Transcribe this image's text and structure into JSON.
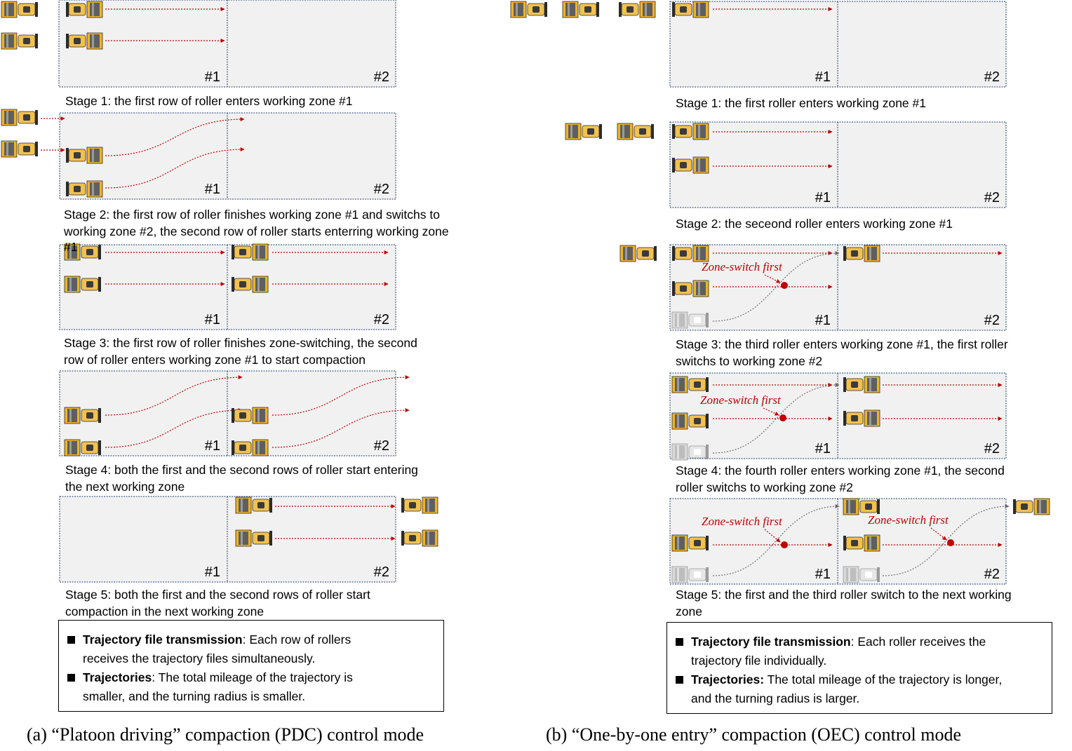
{
  "zone_labels": [
    "#1",
    "#2"
  ],
  "annotation_label": "Zone-switch first",
  "colors": {
    "zone_fill": "#f1f1f1",
    "zone_border": "#1f3f6e",
    "trajectory_red": "#c00000",
    "trajectory_gray": "#707070",
    "roller_yellow": "#f0b323",
    "roller_dark": "#2b2b2b"
  },
  "left_panel": {
    "captions": [
      [
        "Stage 1: the first row of roller enters working zone #1"
      ],
      [
        "Stage 2: the first row of roller finishes working zone #1 and switchs to",
        "working zone #2, the second row of roller starts enterring working zone",
        "#1"
      ],
      [
        "Stage 3: the first row of roller finishes zone-switching, the second",
        "row of roller enters working zone #1 to start compaction"
      ],
      [
        "Stage 4: both the first and the second rows of roller start entering",
        "the next working zone"
      ],
      [
        "Stage 5: both the first and the second rows of roller start",
        "compaction in the next working zone"
      ]
    ],
    "info": [
      {
        "bold": "Trajectory file transmission",
        "text": ": Each row of rollers",
        "line2": "receives the trajectory files simultaneously."
      },
      {
        "bold": "Trajectories",
        "text": ": The total mileage of the trajectory is",
        "line2": "smaller, and the turning radius is smaller."
      }
    ],
    "subtitle": "(a) “Platoon driving” compaction (PDC) control mode"
  },
  "right_panel": {
    "captions": [
      [
        "Stage 1: the first roller enters working zone #1"
      ],
      [
        "Stage 2: the seceond roller enters working zone #1"
      ],
      [
        "Stage 3: the third roller enters working zone #1, the first roller",
        "switchs to working zone #2"
      ],
      [
        "Stage 4: the fourth roller enters working zone #1, the second",
        "roller switchs to working zone #2"
      ],
      [
        "Stage 5: the first and the third roller switch to the next working",
        "zone"
      ]
    ],
    "info": [
      {
        "bold": "Trajectory file transmission",
        "text": ": Each roller receives the",
        "line2": "trajectory file individually."
      },
      {
        "bold": "Trajectories:",
        "text": " The total mileage of the trajectory is longer,",
        "line2": "and the turning radius is larger."
      }
    ],
    "subtitle": "(b) “One-by-one entry” compaction (OEC) control mode"
  }
}
